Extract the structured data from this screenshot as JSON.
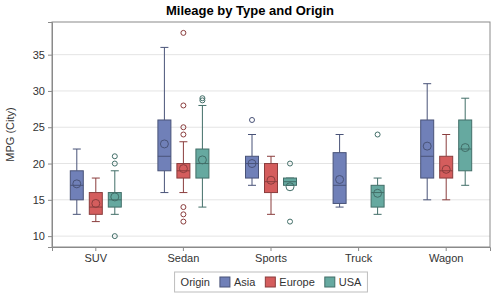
{
  "chart_data": {
    "type": "box",
    "title": "Mileage by Type and Origin",
    "y_label": "MPG (City)",
    "categories": [
      "SUV",
      "Sedan",
      "Sports",
      "Truck",
      "Wagon"
    ],
    "legend_title": "Origin",
    "legend": "bottom",
    "grid": true,
    "ylim": [
      8.5,
      39.5
    ],
    "yticks": [
      10,
      15,
      20,
      25,
      30,
      35
    ],
    "series": [
      {
        "name": "Asia",
        "color": "#7080b8",
        "min": [
          13,
          16,
          17,
          14,
          15
        ],
        "q1": [
          15,
          19,
          18,
          14.5,
          18
        ],
        "median": [
          17,
          21,
          20,
          17,
          21
        ],
        "q3": [
          19,
          26,
          21,
          21.5,
          26
        ],
        "max": [
          22,
          36,
          24,
          24,
          31
        ],
        "mean": [
          17.2,
          22.7,
          20,
          17.8,
          22.4
        ],
        "outliers": [
          [],
          [],
          [
            26
          ],
          [],
          []
        ]
      },
      {
        "name": "Europe",
        "color": "#d45d5d",
        "min": [
          12,
          16,
          13,
          null,
          15
        ],
        "q1": [
          13,
          18,
          16,
          null,
          18
        ],
        "median": [
          14,
          19,
          17.5,
          null,
          19
        ],
        "q3": [
          16,
          20,
          20,
          null,
          21
        ],
        "max": [
          18,
          23,
          21,
          null,
          24
        ],
        "mean": [
          14.5,
          19.3,
          17.7,
          null,
          19.2
        ],
        "outliers": [
          [],
          [
            38,
            28,
            25,
            24,
            14,
            13,
            12
          ],
          [],
          [],
          []
        ]
      },
      {
        "name": "USA",
        "color": "#66a9a0",
        "min": [
          13,
          14,
          17,
          13,
          17
        ],
        "q1": [
          14,
          18,
          17,
          14,
          19
        ],
        "median": [
          15,
          20,
          17.5,
          16,
          22
        ],
        "q3": [
          16,
          22,
          18,
          17,
          26
        ],
        "max": [
          19,
          28,
          18,
          18,
          29
        ],
        "mean": [
          15.4,
          20.5,
          16.8,
          15.9,
          22.2
        ],
        "outliers": [
          [
            21,
            20,
            10
          ],
          [
            29,
            28.7
          ],
          [
            20,
            12
          ],
          [
            24
          ],
          []
        ]
      }
    ]
  }
}
